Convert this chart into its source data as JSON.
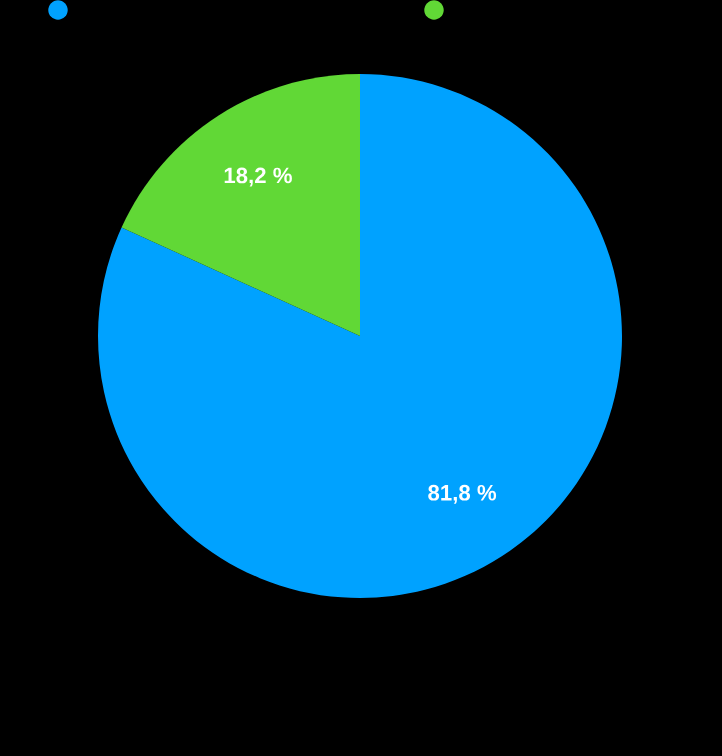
{
  "chart_data": {
    "type": "pie",
    "categories": [
      null,
      null
    ],
    "values": [
      81.8,
      18.2
    ],
    "colors": [
      "#00a2ff",
      "#61d836"
    ],
    "value_labels": [
      "81,8 %",
      "18,2 %"
    ]
  }
}
